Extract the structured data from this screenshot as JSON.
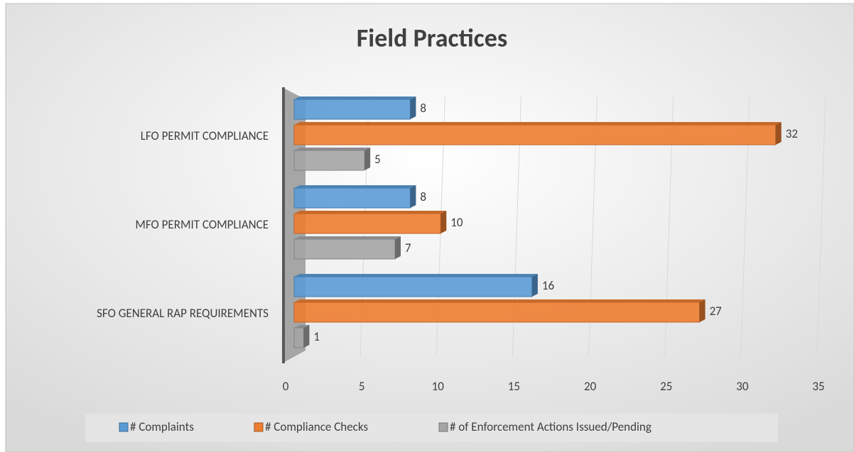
{
  "chart_data": {
    "type": "bar",
    "orientation": "horizontal",
    "title": "Field Practices",
    "categories": [
      "LFO PERMIT COMPLIANCE",
      "MFO PERMIT COMPLIANCE",
      "SFO GENERAL RAP REQUIREMENTS"
    ],
    "series": [
      {
        "name": "# Complaints",
        "color": "#5b9bd5",
        "values": [
          8,
          8,
          16
        ]
      },
      {
        "name": "# Compliance Checks",
        "color": "#ed7d31",
        "values": [
          32,
          10,
          27
        ]
      },
      {
        "name": "# of Enforcement Actions Issued/Pending",
        "color": "#a5a5a5",
        "values": [
          5,
          7,
          1
        ]
      }
    ],
    "xlim": [
      0,
      35
    ],
    "xticks": [
      0,
      5,
      10,
      15,
      20,
      25,
      30,
      35
    ],
    "grid": true,
    "legend": "bottom"
  }
}
